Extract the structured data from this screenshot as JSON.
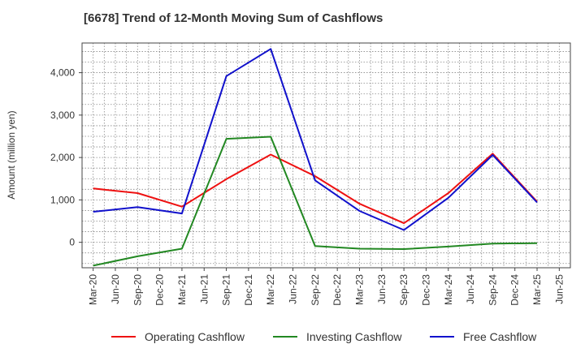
{
  "chart_data": {
    "type": "line",
    "title": "[6678]  Trend of 12-Month Moving Sum of Cashflows",
    "xlabel": "",
    "ylabel": "Amount (million yen)",
    "ylim": [
      -600,
      4700
    ],
    "y_ticks": [
      0,
      1000,
      2000,
      3000,
      4000
    ],
    "y_tick_labels": [
      "0",
      "1,000",
      "2,000",
      "3,000",
      "4,000"
    ],
    "x_ticks": [
      "Mar-20",
      "Jun-20",
      "Sep-20",
      "Dec-20",
      "Mar-21",
      "Jun-21",
      "Sep-21",
      "Dec-21",
      "Mar-22",
      "Jun-22",
      "Sep-22",
      "Dec-22",
      "Mar-23",
      "Jun-23",
      "Sep-23",
      "Dec-23",
      "Mar-24",
      "Jun-24",
      "Sep-24",
      "Dec-24",
      "Mar-25",
      "Jun-25"
    ],
    "x": [
      "Mar-20",
      "Sep-20",
      "Mar-21",
      "Sep-21",
      "Mar-22",
      "Sep-22",
      "Mar-23",
      "Sep-23",
      "Mar-24",
      "Sep-24",
      "Mar-25"
    ],
    "grid": true,
    "legend_position": "bottom",
    "series": [
      {
        "name": "Operating Cashflow",
        "color": "#ee1111",
        "values": [
          1270,
          1160,
          840,
          1490,
          2070,
          1560,
          910,
          450,
          1160,
          2090,
          960
        ]
      },
      {
        "name": "Investing Cashflow",
        "color": "#228822",
        "values": [
          -550,
          -330,
          -150,
          2440,
          2490,
          -90,
          -150,
          -160,
          -100,
          -30,
          -20
        ]
      },
      {
        "name": "Free Cashflow",
        "color": "#1111cc",
        "values": [
          720,
          830,
          680,
          3920,
          4560,
          1460,
          740,
          290,
          1050,
          2060,
          940
        ]
      }
    ]
  }
}
